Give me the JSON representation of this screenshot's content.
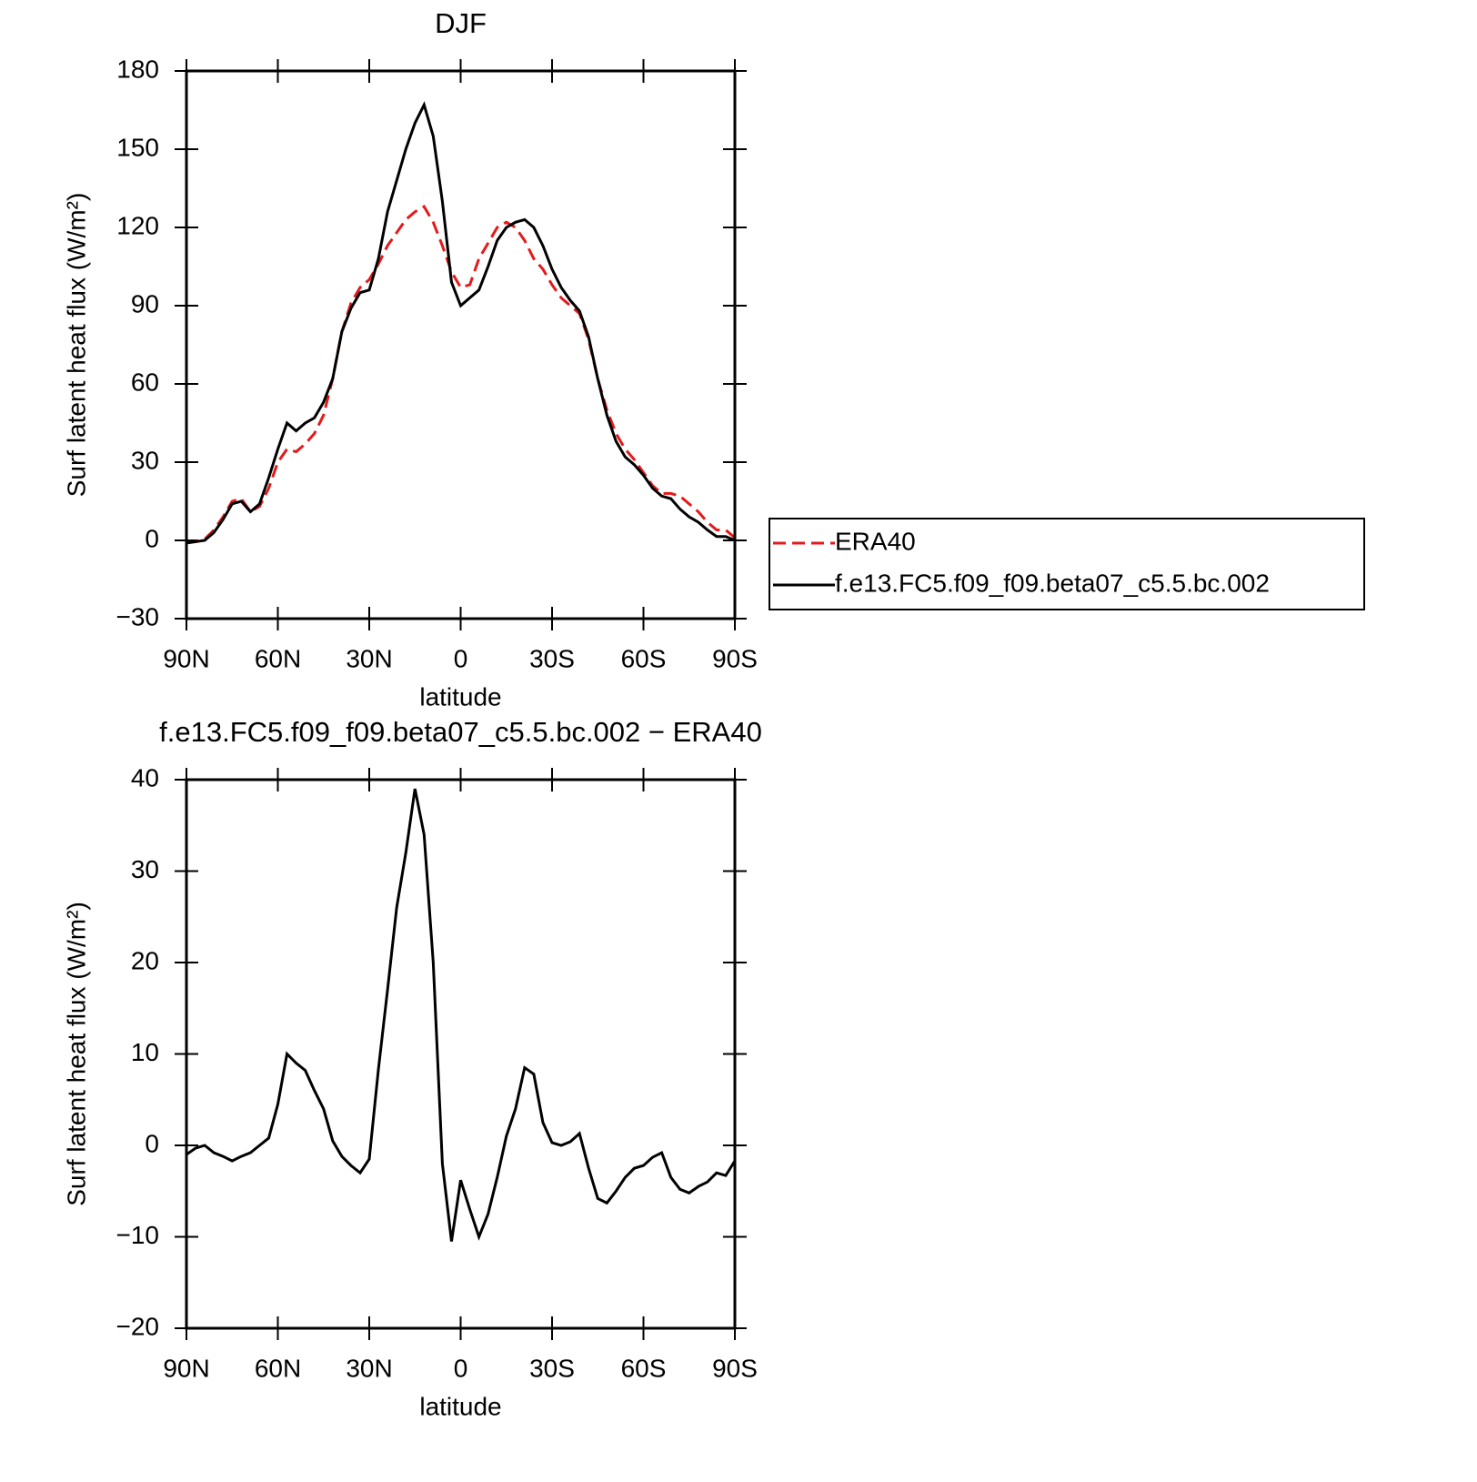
{
  "chart_data": [
    {
      "type": "line",
      "title": "DJF",
      "xlabel": "latitude",
      "ylabel": "Surf latent heat flux (W/m²)",
      "x": [
        90,
        87,
        84,
        81,
        78,
        75,
        72,
        69,
        66,
        63,
        60,
        57,
        54,
        51,
        48,
        45,
        42,
        39,
        36,
        33,
        30,
        27,
        24,
        21,
        18,
        15,
        12,
        9,
        6,
        3,
        0,
        -3,
        -6,
        -9,
        -12,
        -15,
        -18,
        -21,
        -24,
        -27,
        -30,
        -33,
        -36,
        -39,
        -42,
        -45,
        -48,
        -51,
        -54,
        -57,
        -60,
        -63,
        -66,
        -69,
        -72,
        -75,
        -78,
        -81,
        -84,
        -87,
        -90
      ],
      "xlim": [
        90,
        -90
      ],
      "xticks": [
        {
          "value": 90,
          "label": "90N"
        },
        {
          "value": 60,
          "label": "60N"
        },
        {
          "value": 30,
          "label": "30N"
        },
        0,
        {
          "value": -30,
          "label": "30S"
        },
        {
          "value": -60,
          "label": "60S"
        },
        {
          "value": -90,
          "label": "90S"
        }
      ],
      "ylim": [
        -30,
        180
      ],
      "yticks": [
        {
          "value": -30,
          "label": "−30"
        },
        0,
        30,
        60,
        90,
        120,
        150,
        180
      ],
      "legend": "outside-right",
      "series": [
        {
          "name": "ERA40",
          "color": "#e41a1c",
          "dash": "dashed",
          "values": [
            -1,
            -0.5,
            0.5,
            4,
            9,
            15,
            16,
            11,
            13,
            20,
            30,
            35,
            34,
            37,
            41,
            48,
            62,
            80,
            91,
            97,
            100,
            106,
            113,
            118,
            123,
            126,
            128,
            122,
            113,
            103,
            97,
            98,
            108,
            114,
            120,
            122,
            120,
            115,
            108,
            104,
            98,
            93,
            90,
            87,
            77,
            62,
            50,
            41,
            35,
            31,
            26,
            21,
            18,
            18,
            17,
            14,
            11,
            7,
            4,
            4,
            1
          ]
        },
        {
          "name": "f.e13.FC5.f09_f09.beta07_c5.5.bc.002",
          "color": "#000000",
          "dash": "solid",
          "values": [
            -1,
            -0.5,
            0,
            3,
            8,
            14,
            15,
            11,
            14,
            24,
            35,
            45,
            42,
            45,
            47,
            53,
            62,
            80,
            89,
            95,
            96,
            108,
            126,
            138,
            150,
            160,
            167,
            155,
            130,
            99,
            90,
            93,
            96,
            105,
            115,
            120,
            122,
            123,
            120,
            113,
            104,
            97,
            92,
            88,
            78,
            62,
            48,
            38,
            32,
            29,
            25,
            20,
            17,
            16,
            12,
            9,
            7,
            4,
            1.5,
            1.5,
            0
          ]
        }
      ]
    },
    {
      "type": "line",
      "title": "f.e13.FC5.f09_f09.beta07_c5.5.bc.002 − ERA40",
      "xlabel": "latitude",
      "ylabel": "Surf latent heat flux (W/m²)",
      "x": [
        90,
        87,
        84,
        81,
        78,
        75,
        72,
        69,
        66,
        63,
        60,
        57,
        54,
        51,
        48,
        45,
        42,
        39,
        36,
        33,
        30,
        27,
        24,
        21,
        18,
        15,
        12,
        9,
        6,
        3,
        0,
        -3,
        -6,
        -9,
        -12,
        -15,
        -18,
        -21,
        -24,
        -27,
        -30,
        -33,
        -36,
        -39,
        -42,
        -45,
        -48,
        -51,
        -54,
        -57,
        -60,
        -63,
        -66,
        -69,
        -72,
        -75,
        -78,
        -81,
        -84,
        -87,
        -90
      ],
      "xlim": [
        90,
        -90
      ],
      "xticks": [
        {
          "value": 90,
          "label": "90N"
        },
        {
          "value": 60,
          "label": "60N"
        },
        {
          "value": 30,
          "label": "30N"
        },
        0,
        {
          "value": -30,
          "label": "30S"
        },
        {
          "value": -60,
          "label": "60S"
        },
        {
          "value": -90,
          "label": "90S"
        }
      ],
      "ylim": [
        -20,
        40
      ],
      "yticks": [
        {
          "value": -20,
          "label": "−20"
        },
        {
          "value": -10,
          "label": "−10"
        },
        0,
        10,
        20,
        30,
        40
      ],
      "series": [
        {
          "color": "#000000",
          "dash": "solid",
          "values": [
            -1,
            -0.3,
            0,
            -0.8,
            -1.2,
            -1.7,
            -1.2,
            -0.8,
            0,
            0.8,
            4.5,
            10,
            9,
            8.2,
            6,
            4,
            0.5,
            -1.2,
            -2.2,
            -3,
            -1.5,
            8.3,
            17,
            26,
            32,
            39,
            34,
            20,
            -2,
            -10.5,
            -3.8,
            -7,
            -10,
            -7.5,
            -3.5,
            1,
            4,
            8.5,
            7.8,
            2.5,
            0.3,
            0,
            0.4,
            1.3,
            -2.5,
            -5.8,
            -6.3,
            -5,
            -3.5,
            -2.5,
            -2.2,
            -1.3,
            -0.8,
            -3.5,
            -4.8,
            -5.2,
            -4.5,
            -4,
            -3,
            -3.3,
            -1.7
          ]
        }
      ]
    }
  ]
}
